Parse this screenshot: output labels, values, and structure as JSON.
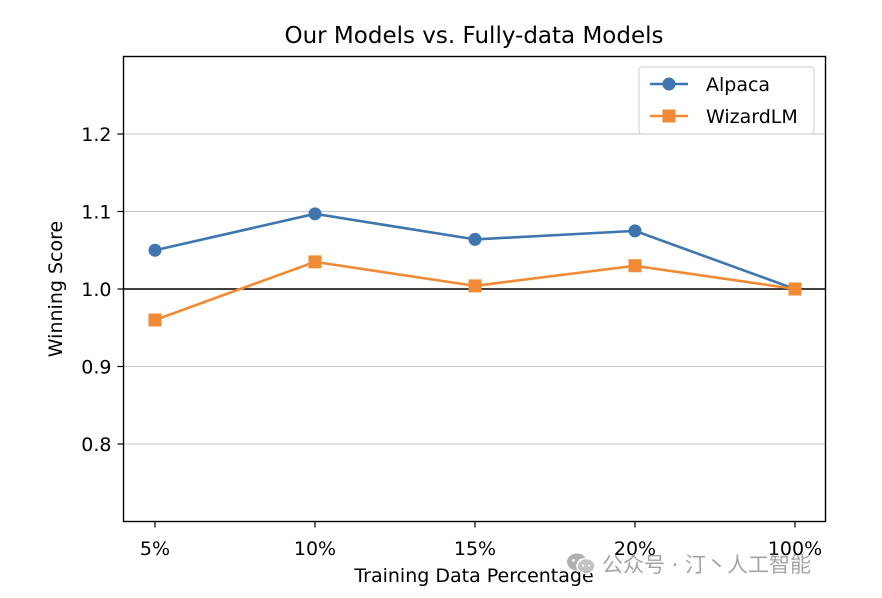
{
  "chart_data": {
    "type": "line",
    "title": "Our Models vs. Fully-data Models",
    "xlabel": "Training Data Percentage",
    "ylabel": "Winning Score",
    "categories": [
      "5%",
      "10%",
      "15%",
      "20%",
      "100%"
    ],
    "ylim": [
      0.7,
      1.3
    ],
    "yticks": [
      "0.8",
      "0.9",
      "1.0",
      "1.1",
      "1.2"
    ],
    "grid": "horizontal",
    "reference_line": 1.0,
    "legend_position": "top-right",
    "series": [
      {
        "name": "Alpaca",
        "marker": "circle",
        "color": "#3f76b0",
        "values": [
          1.05,
          1.097,
          1.064,
          1.075,
          1.0
        ]
      },
      {
        "name": "WizardLM",
        "marker": "square",
        "color": "#f08a35",
        "values": [
          0.96,
          1.035,
          1.004,
          1.03,
          1.0
        ]
      }
    ]
  },
  "watermark": {
    "text": "公众号 · 汀丶人工智能",
    "icon": "wechat-icon"
  }
}
